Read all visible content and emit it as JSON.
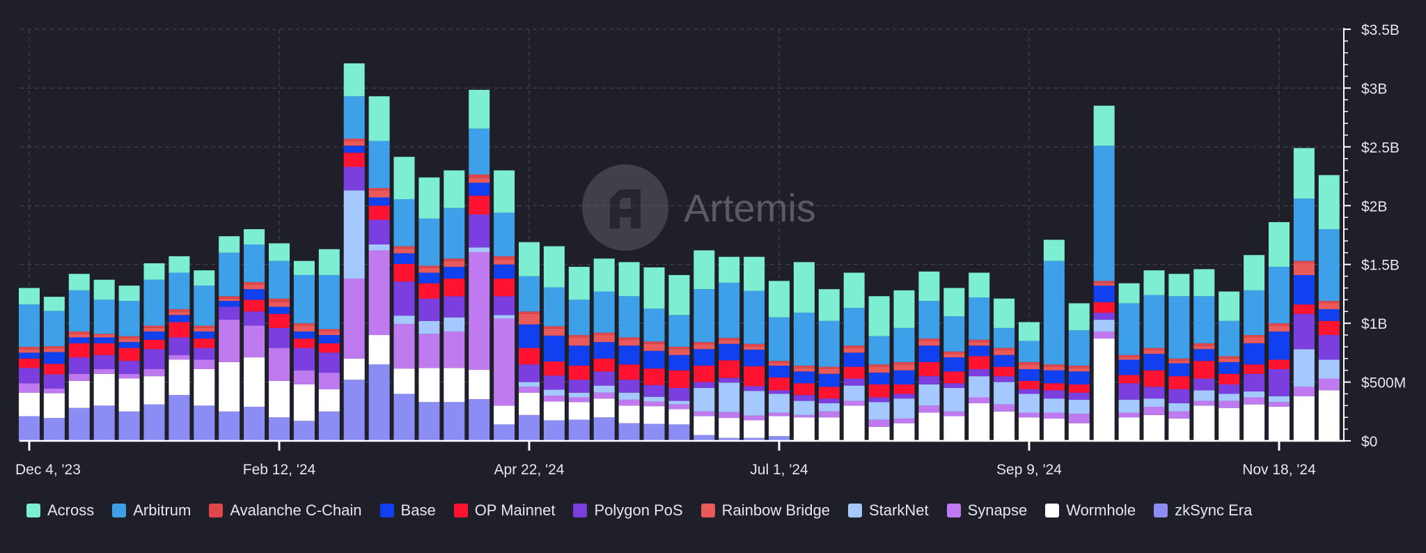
{
  "chart_data": {
    "type": "bar",
    "stacked": true,
    "watermark": "Artemis",
    "y_unit": "USD",
    "ylim": [
      0,
      3500000000
    ],
    "y_tick_labels": [
      "$0",
      "$500M",
      "$1B",
      "$1.5B",
      "$2B",
      "$2.5B",
      "$3B",
      "$3.5B"
    ],
    "y_tick_values": [
      0,
      500,
      1000,
      1500,
      2000,
      2500,
      3000,
      3500
    ],
    "x_tick_labels": [
      "Dec 4, '23",
      "Feb 12, '24",
      "Apr 22, '24",
      "Jul 1, '24",
      "Sep 9, '24",
      "Nov 18, '24"
    ],
    "x_tick_index": [
      0,
      10,
      20,
      30,
      40,
      50
    ],
    "grid": true,
    "legend_position": "bottom",
    "categories": [
      "2023-12-04",
      "2023-12-11",
      "2023-12-18",
      "2023-12-25",
      "2024-01-01",
      "2024-01-08",
      "2024-01-15",
      "2024-01-22",
      "2024-01-29",
      "2024-02-05",
      "2024-02-12",
      "2024-02-19",
      "2024-02-26",
      "2024-03-04",
      "2024-03-11",
      "2024-03-18",
      "2024-03-25",
      "2024-04-01",
      "2024-04-08",
      "2024-04-15",
      "2024-04-22",
      "2024-04-29",
      "2024-05-06",
      "2024-05-13",
      "2024-05-20",
      "2024-05-27",
      "2024-06-03",
      "2024-06-10",
      "2024-06-17",
      "2024-06-24",
      "2024-07-01",
      "2024-07-08",
      "2024-07-15",
      "2024-07-22",
      "2024-07-29",
      "2024-08-05",
      "2024-08-12",
      "2024-08-19",
      "2024-08-26",
      "2024-09-02",
      "2024-09-09",
      "2024-09-16",
      "2024-09-23",
      "2024-09-30",
      "2024-10-07",
      "2024-10-14",
      "2024-10-21",
      "2024-10-28",
      "2024-11-04",
      "2024-11-11",
      "2024-11-18",
      "2024-11-25",
      "2024-12-02"
    ],
    "series": [
      {
        "name": "zkSync Era",
        "color": "#8c8cf5",
        "values": [
          210,
          195,
          280,
          300,
          250,
          310,
          390,
          300,
          250,
          290,
          200,
          170,
          250,
          520,
          650,
          400,
          330,
          330,
          355,
          140,
          220,
          175,
          180,
          200,
          150,
          145,
          140,
          50,
          25,
          25,
          40,
          0,
          0,
          0,
          0,
          0,
          0,
          0,
          0,
          0,
          0,
          0,
          0,
          0,
          0,
          0,
          0,
          0,
          0,
          0,
          0,
          0,
          0
        ]
      },
      {
        "name": "Wormhole",
        "color": "#ffffff",
        "values": [
          200,
          210,
          230,
          270,
          280,
          240,
          300,
          310,
          420,
          420,
          310,
          310,
          190,
          180,
          250,
          215,
          290,
          290,
          250,
          160,
          190,
          160,
          150,
          160,
          150,
          150,
          130,
          160,
          170,
          150,
          170,
          200,
          200,
          300,
          120,
          150,
          240,
          210,
          320,
          250,
          200,
          190,
          150,
          870,
          200,
          220,
          190,
          300,
          280,
          310,
          290,
          380,
          430
        ]
      },
      {
        "name": "Synapse",
        "color": "#c07af0",
        "values": [
          80,
          40,
          60,
          40,
          40,
          60,
          40,
          80,
          360,
          270,
          280,
          120,
          140,
          680,
          720,
          380,
          290,
          310,
          1000,
          740,
          50,
          50,
          40,
          50,
          50,
          40,
          40,
          40,
          50,
          40,
          30,
          20,
          50,
          40,
          60,
          40,
          60,
          40,
          50,
          60,
          40,
          50,
          80,
          60,
          40,
          70,
          60,
          40,
          60,
          60,
          40,
          80,
          100
        ]
      },
      {
        "name": "StarkNet",
        "color": "#a5c8ff",
        "values": [
          0,
          0,
          0,
          0,
          0,
          0,
          0,
          0,
          0,
          0,
          0,
          0,
          0,
          750,
          50,
          70,
          110,
          120,
          40,
          30,
          40,
          50,
          40,
          60,
          60,
          40,
          30,
          200,
          250,
          210,
          160,
          120,
          70,
          130,
          150,
          170,
          180,
          200,
          180,
          190,
          160,
          120,
          120,
          100,
          110,
          70,
          70,
          90,
          60,
          50,
          50,
          320,
          160
        ]
      },
      {
        "name": "Polygon PoS",
        "color": "#7b3fe0",
        "values": [
          130,
          120,
          140,
          120,
          110,
          170,
          150,
          100,
          110,
          120,
          170,
          190,
          170,
          200,
          210,
          290,
          190,
          180,
          280,
          160,
          150,
          120,
          110,
          120,
          110,
          100,
          110,
          50,
          40,
          40,
          30,
          50,
          40,
          60,
          40,
          40,
          70,
          40,
          60,
          50,
          40,
          70,
          60,
          60,
          140,
          100,
          120,
          100,
          80,
          150,
          230,
          300,
          210
        ]
      },
      {
        "name": "OP Mainnet",
        "color": "#ff1330",
        "values": [
          80,
          90,
          120,
          100,
          110,
          80,
          130,
          80,
          0,
          100,
          120,
          80,
          80,
          120,
          120,
          150,
          130,
          150,
          160,
          150,
          140,
          120,
          120,
          110,
          130,
          140,
          150,
          140,
          150,
          170,
          110,
          100,
          100,
          100,
          110,
          80,
          120,
          100,
          110,
          80,
          70,
          60,
          70,
          90,
          70,
          140,
          110,
          150,
          90,
          80,
          80,
          80,
          120
        ]
      },
      {
        "name": "Base",
        "color": "#1040f0",
        "values": [
          50,
          100,
          50,
          50,
          50,
          70,
          60,
          60,
          50,
          90,
          60,
          60,
          70,
          60,
          70,
          90,
          90,
          100,
          110,
          120,
          200,
          220,
          170,
          140,
          160,
          150,
          130,
          140,
          140,
          140,
          100,
          100,
          110,
          120,
          100,
          120,
          140,
          120,
          90,
          100,
          100,
          110,
          110,
          140,
          130,
          140,
          110,
          100,
          100,
          180,
          240,
          250,
          100
        ]
      },
      {
        "name": "Rainbow Bridge",
        "color": "#ea5a5a",
        "values": [
          30,
          30,
          30,
          20,
          30,
          30,
          30,
          30,
          20,
          40,
          40,
          50,
          30,
          40,
          60,
          40,
          40,
          50,
          40,
          40,
          90,
          60,
          70,
          60,
          50,
          60,
          50,
          40,
          30,
          30,
          20,
          30,
          40,
          40,
          50,
          50,
          40,
          30,
          30,
          40,
          40,
          30,
          30,
          20,
          20,
          30,
          20,
          30,
          30,
          50,
          50,
          100,
          50
        ]
      },
      {
        "name": "Avalanche C-Chain",
        "color": "#e0474c",
        "values": [
          20,
          20,
          20,
          10,
          20,
          20,
          20,
          20,
          20,
          20,
          30,
          20,
          20,
          20,
          20,
          20,
          20,
          20,
          30,
          30,
          20,
          20,
          20,
          20,
          20,
          20,
          20,
          20,
          20,
          20,
          20,
          20,
          20,
          20,
          20,
          20,
          20,
          20,
          20,
          20,
          20,
          20,
          20,
          20,
          20,
          20,
          20,
          20,
          20,
          20,
          20,
          20,
          20
        ]
      },
      {
        "name": "Arbitrum",
        "color": "#3ea0e8",
        "values": [
          360,
          300,
          350,
          290,
          300,
          390,
          310,
          340,
          370,
          320,
          320,
          410,
          460,
          360,
          400,
          400,
          400,
          430,
          390,
          370,
          300,
          330,
          300,
          350,
          350,
          280,
          270,
          450,
          470,
          450,
          370,
          450,
          390,
          320,
          240,
          290,
          320,
          300,
          360,
          170,
          180,
          880,
          300,
          1150,
          440,
          450,
          530,
          400,
          300,
          380,
          480,
          530,
          610
        ]
      },
      {
        "name": "Across",
        "color": "#7deed2",
        "values": [
          140,
          120,
          140,
          170,
          130,
          140,
          140,
          130,
          140,
          130,
          150,
          120,
          220,
          280,
          380,
          360,
          350,
          320,
          330,
          360,
          290,
          350,
          280,
          280,
          290,
          350,
          340,
          330,
          220,
          290,
          310,
          430,
          270,
          300,
          340,
          320,
          250,
          240,
          210,
          250,
          160,
          180,
          230,
          340,
          170,
          210,
          190,
          230,
          250,
          300,
          380,
          430,
          460
        ]
      }
    ]
  }
}
